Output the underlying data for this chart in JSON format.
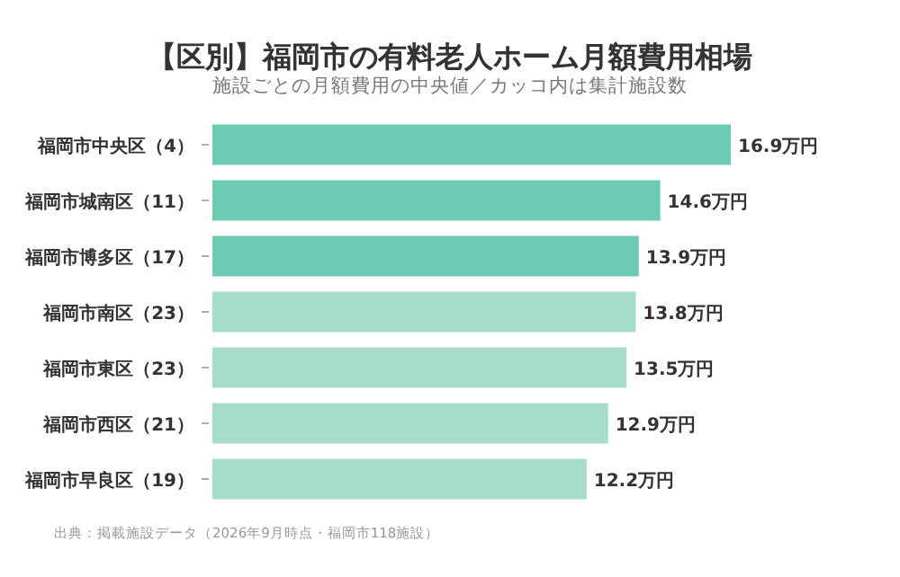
{
  "chart_data": {
    "type": "bar",
    "orientation": "horizontal",
    "title": "【区別】福岡市の有料老人ホーム月額費用相場",
    "subtitle": "施設ごとの月額費用の中央値／カッコ内は集計施設数",
    "categories": [
      "福岡市中央区（4）",
      "福岡市城南区（11）",
      "福岡市博多区（17）",
      "福岡市南区（23）",
      "福岡市東区（23）",
      "福岡市西区（21）",
      "福岡市早良区（19）"
    ],
    "values": [
      16.9,
      14.6,
      13.9,
      13.8,
      13.5,
      12.9,
      12.2
    ],
    "value_labels": [
      "16.9万円",
      "14.6万円",
      "13.9万円",
      "13.8万円",
      "13.5万円",
      "12.9万円",
      "12.2万円"
    ],
    "colors": [
      "#6ecab5",
      "#6ecab5",
      "#6ecab5",
      "#a7dcc9",
      "#a7dcc9",
      "#a7dcc9",
      "#a7dcc9"
    ],
    "annotations": [
      "出典：掲載施設データ（2026年9月時点・福岡市118施設）"
    ]
  }
}
